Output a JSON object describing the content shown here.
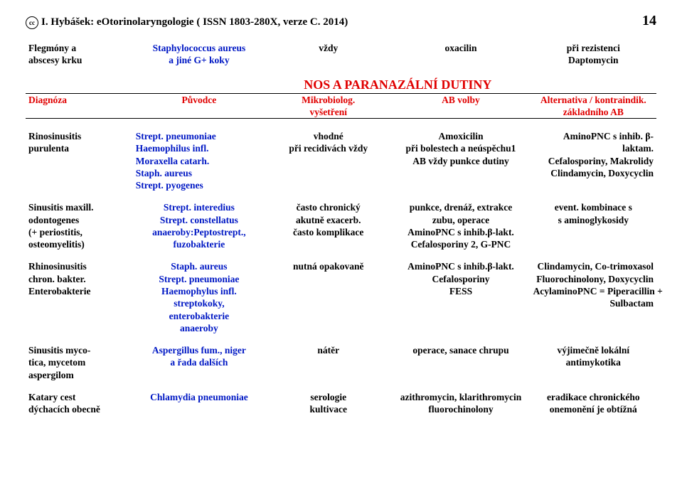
{
  "header": {
    "cc": "cc",
    "title": "I. Hybášek: eOtorinolaryngologie ( ISSN 1803-280X, verze C. 2014)",
    "page_number": "14"
  },
  "intro_row": {
    "c1a": "Flegmóny a",
    "c1b": "abscesy krku",
    "c2a": "Staphylococcus aureus",
    "c2b": "a jiné G+ koky",
    "c3": "vždy",
    "c4": "oxacilin",
    "c5a": "při rezistenci",
    "c5b": "Daptomycin"
  },
  "section_heading": "NOS A PARANAZÁLNÍ DUTINY",
  "col_headers": {
    "c1": "Diagnóza",
    "c2": "Původce",
    "c3a": "Mikrobiolog.",
    "c3b": "vyšetření",
    "c4": "AB volby",
    "c5a": "Alternativa / kontraindik.",
    "c5b": "základního AB"
  },
  "rows": [
    {
      "c1": [
        "Rinosinusitis",
        "purulenta"
      ],
      "c2": [
        "Strept. pneumoniae",
        "Haemophilus infl.",
        "Moraxella catarh.",
        "Staph. aureus",
        "Strept. pyogenes"
      ],
      "c3": [
        "vhodné",
        "při recidivách vždy"
      ],
      "c4": [
        "Amoxicilin",
        "při bolestech a neúspěchu1",
        "AB vždy punkce dutiny"
      ],
      "c5": [
        "AminoPNC s inhib. β-laktam.",
        "Cefalosporiny, Makrolidy",
        "Clindamycin, Doxycyclin"
      ]
    },
    {
      "c1": [
        "Sinusitis maxill.",
        "odontogenes",
        "(+ periostitis,",
        "osteomyelitis)"
      ],
      "c2": [
        "Strept. interedius",
        "Strept. constellatus",
        "anaeroby:Peptostrept.,",
        "fuzobakterie"
      ],
      "c3": [
        "často chronický",
        "akutně exacerb.",
        "často komplikace"
      ],
      "c4": [
        "punkce, drenáž, extrakce",
        "zubu, operace",
        "AminoPNC s inhib.β-lakt.",
        "Cefalosporiny 2, G-PNC"
      ],
      "c5": [
        "event. kombinace s",
        "s aminoglykosidy"
      ]
    },
    {
      "c1": [
        "Rhinosinusitis",
        "chron. bakter.",
        "",
        "Enterobakterie"
      ],
      "c2": [
        "Staph. aureus",
        "Strept. pneumoniae",
        "Haemophylus infl.",
        "streptokoky,",
        "enterobakterie",
        "anaeroby"
      ],
      "c3": [
        "nutná opakovaně"
      ],
      "c4": [
        "AminoPNC s inhib.β-lakt.",
        "Cefalosporiny",
        "FESS"
      ],
      "c5": [
        "Clindamycin, Co-trimoxasol",
        "Fluorochinolony, Doxycyclin",
        "AcylaminoPNC = Piperacillin +",
        "Sulbactam"
      ]
    },
    {
      "c1": [
        "Sinusitis myco-",
        "tica, mycetom",
        "aspergilom"
      ],
      "c2": [
        "Aspergillus fum., niger",
        "a řada dalších"
      ],
      "c3": [
        "nátěr"
      ],
      "c4": [
        "operace, sanace chrupu"
      ],
      "c5": [
        "výjimečně lokální",
        "antimykotika"
      ]
    },
    {
      "c1": [
        "Katary cest",
        "dýchacích obecně"
      ],
      "c2": [
        "Chlamydia pneumoniae"
      ],
      "c3": [
        "serologie",
        "kultivace"
      ],
      "c4": [
        "azithromycin, klarithromycin",
        "fluorochinolony"
      ],
      "c5": [
        "eradikace chronického",
        "onemonění je obtížná"
      ]
    }
  ]
}
